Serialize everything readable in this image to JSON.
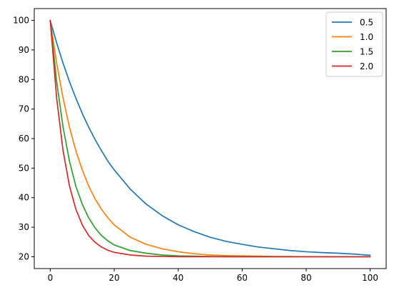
{
  "chart_data": {
    "type": "line",
    "title": "",
    "xlabel": "",
    "ylabel": "",
    "xlim": [
      -5,
      105
    ],
    "ylim": [
      16,
      104
    ],
    "x_ticks": [
      0,
      20,
      40,
      60,
      80,
      100
    ],
    "y_ticks": [
      20,
      30,
      40,
      50,
      60,
      70,
      80,
      90,
      100
    ],
    "x_tick_labels": [
      "0",
      "20",
      "40",
      "60",
      "80",
      "100"
    ],
    "y_tick_labels": [
      "20",
      "30",
      "40",
      "50",
      "60",
      "70",
      "80",
      "90",
      "100"
    ],
    "grid": false,
    "legend_position": "top-right",
    "x": [
      0,
      2,
      4,
      6,
      8,
      10,
      12,
      14,
      16,
      18,
      20,
      25,
      30,
      35,
      40,
      45,
      50,
      55,
      60,
      65,
      70,
      75,
      80,
      85,
      90,
      95,
      100
    ],
    "series": [
      {
        "name": "0.5",
        "color": "#1f77b4",
        "values": [
          100,
          92.4,
          85.5,
          79.3,
          73.7,
          68.5,
          63.9,
          59.7,
          55.9,
          52.4,
          49.4,
          42.9,
          37.8,
          33.9,
          30.8,
          28.5,
          26.6,
          25.2,
          24.2,
          23.3,
          22.7,
          22.1,
          21.7,
          21.4,
          21.2,
          20.9,
          20.5
        ]
      },
      {
        "name": "1.0",
        "color": "#ff7f0e",
        "values": [
          100,
          85.5,
          73.7,
          63.9,
          55.9,
          49.4,
          44.0,
          39.6,
          36.1,
          33.2,
          30.8,
          26.6,
          24.2,
          22.7,
          21.7,
          21.0,
          20.6,
          20.4,
          20.3,
          20.2,
          20.1,
          20.1,
          20.0,
          20.0,
          20.0,
          20.0,
          20.0
        ]
      },
      {
        "name": "1.5",
        "color": "#2ca02c",
        "values": [
          100,
          79.3,
          63.9,
          52.4,
          43.9,
          37.8,
          33.2,
          29.8,
          27.2,
          25.4,
          24.0,
          22.1,
          21.2,
          20.6,
          20.3,
          20.2,
          20.1,
          20.0,
          20.0,
          20.0,
          20.0,
          20.0,
          20.0,
          20.0,
          20.0,
          20.0,
          20.0
        ]
      },
      {
        "name": "2.0",
        "color": "#d62728",
        "values": [
          100,
          73.7,
          55.9,
          44.0,
          36.1,
          30.8,
          27.2,
          24.9,
          23.3,
          22.2,
          21.5,
          20.6,
          20.2,
          20.1,
          20.0,
          20.0,
          20.0,
          20.0,
          20.0,
          20.0,
          20.0,
          20.0,
          20.0,
          20.0,
          20.0,
          20.0,
          20.0
        ]
      }
    ]
  }
}
